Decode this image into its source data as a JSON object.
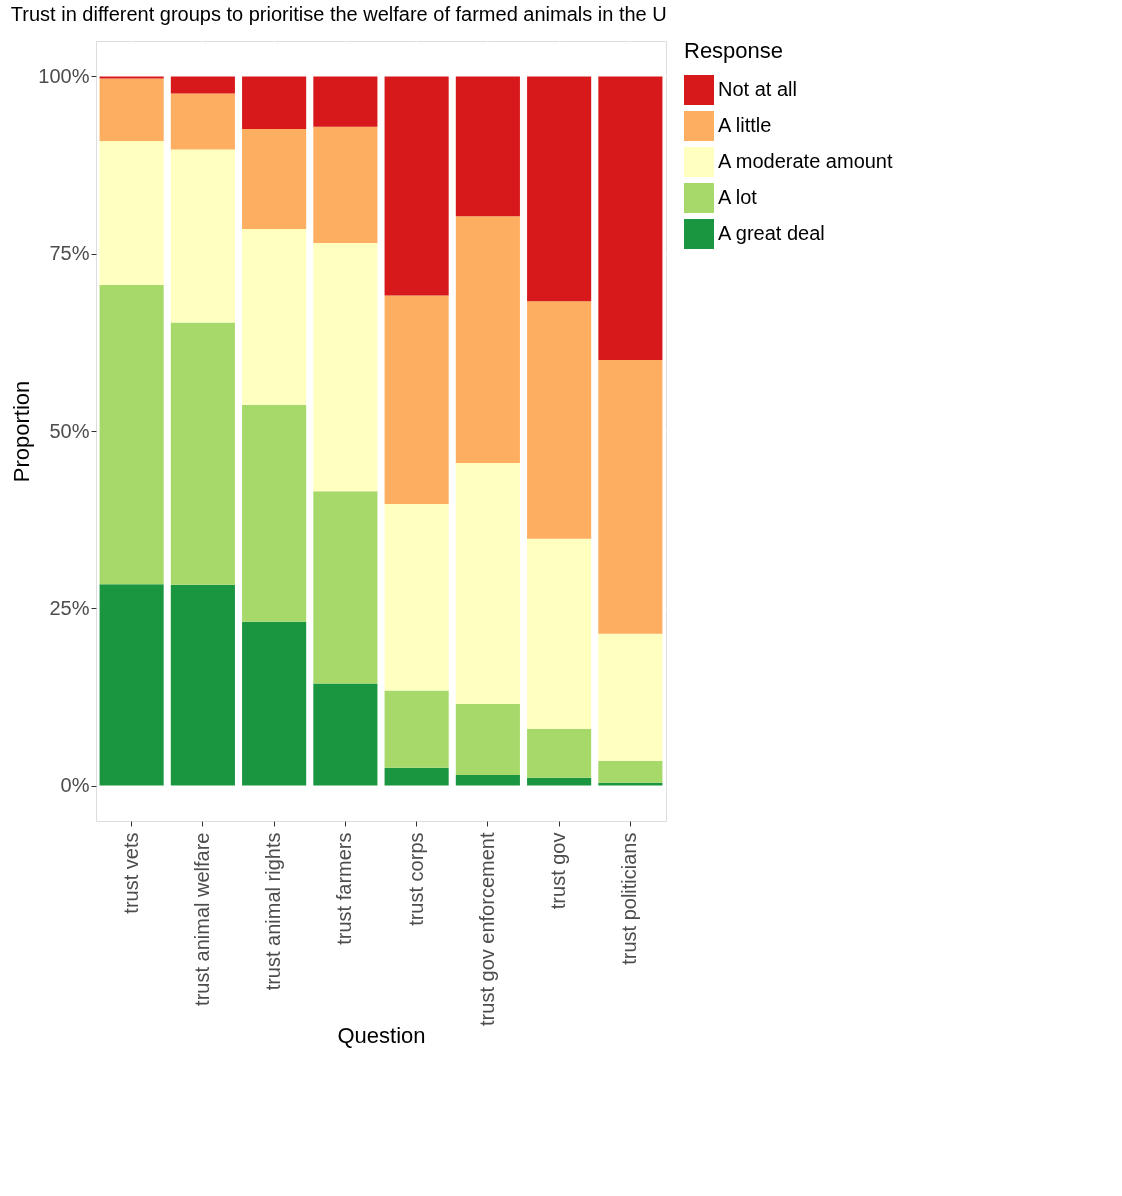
{
  "chart_data": {
    "type": "bar",
    "stacked": true,
    "title": "Trust in different groups to prioritise the welfare of farmed animals in the U",
    "xlabel": "Question",
    "ylabel": "Proportion",
    "legend_title": "Response",
    "legend": "right",
    "grid": true,
    "categories": [
      "trust vets",
      "trust animal welfare",
      "trust animal rights",
      "trust farmers",
      "trust corps",
      "trust gov enforcement",
      "trust gov",
      "trust politicians"
    ],
    "ylim": [
      -0.05,
      1.05
    ],
    "yticks": [
      {
        "value": 0,
        "label": "0%"
      },
      {
        "value": 0.25,
        "label": "25%"
      },
      {
        "value": 0.5,
        "label": "50%"
      },
      {
        "value": 0.75,
        "label": "75%"
      },
      {
        "value": 1,
        "label": "100%"
      }
    ],
    "series": [
      {
        "name": "A great deal",
        "color": "#1a9641",
        "values": [
          0.284,
          0.283,
          0.231,
          0.144,
          0.025,
          0.015,
          0.011,
          0.004
        ]
      },
      {
        "name": "A lot",
        "color": "#a6d96a",
        "values": [
          0.422,
          0.37,
          0.306,
          0.271,
          0.109,
          0.1,
          0.069,
          0.031
        ]
      },
      {
        "name": "A moderate amount",
        "color": "#ffffbf",
        "values": [
          0.203,
          0.244,
          0.248,
          0.35,
          0.263,
          0.34,
          0.268,
          0.179
        ]
      },
      {
        "name": "A little",
        "color": "#fdae61",
        "values": [
          0.088,
          0.079,
          0.141,
          0.164,
          0.294,
          0.348,
          0.335,
          0.386
        ]
      },
      {
        "name": "Not at all",
        "color": "#d7191c",
        "values": [
          0.003,
          0.024,
          0.074,
          0.071,
          0.309,
          0.197,
          0.317,
          0.4
        ]
      }
    ]
  }
}
